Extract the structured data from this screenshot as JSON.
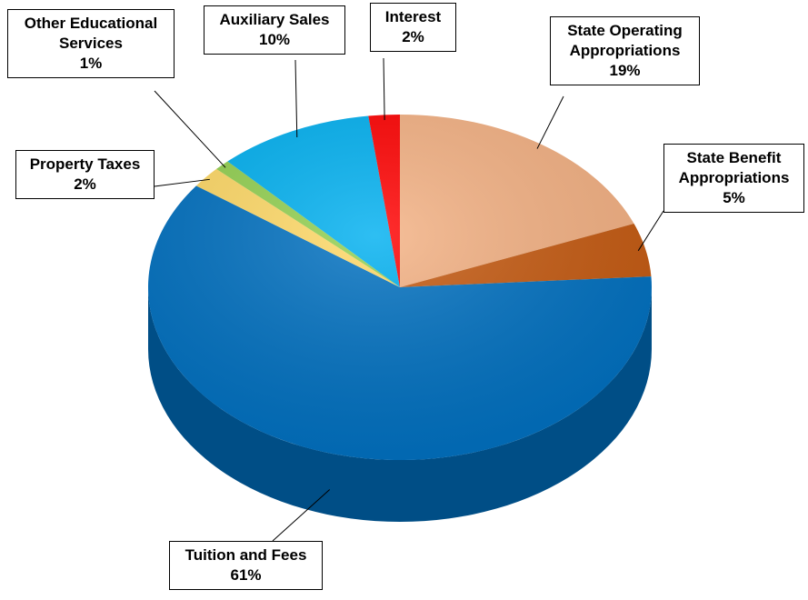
{
  "chart_data": {
    "type": "pie",
    "categories": [
      "State Operating Appropriations",
      "State Benefit Appropriations",
      "Tuition and Fees",
      "Property Taxes",
      "Other Educational Services",
      "Auxiliary Sales",
      "Interest"
    ],
    "values": [
      19,
      5,
      61,
      2,
      1,
      10,
      2
    ],
    "value_labels": [
      "19%",
      "5%",
      "61%",
      "2%",
      "1%",
      "10%",
      "2%"
    ],
    "colors": [
      "#f4b183",
      "#c55a11",
      "#0070c0",
      "#ffd966",
      "#92d050",
      "#00b0f0",
      "#ff0000"
    ]
  }
}
